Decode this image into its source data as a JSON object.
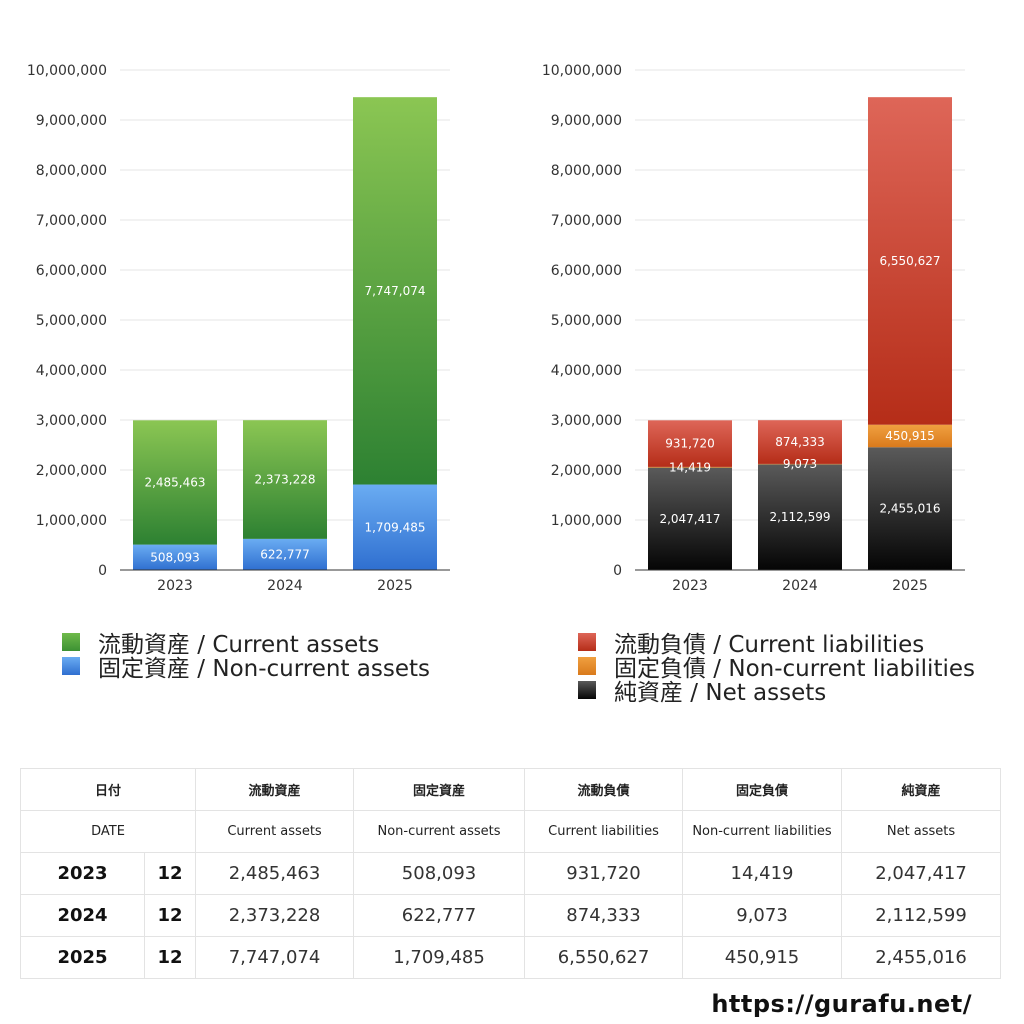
{
  "chart_data": [
    {
      "type": "bar",
      "stacked": true,
      "categories": [
        "2023",
        "2024",
        "2025"
      ],
      "ylim": [
        0,
        10000000
      ],
      "yticks": [
        0,
        1000000,
        2000000,
        3000000,
        4000000,
        5000000,
        6000000,
        7000000,
        8000000,
        9000000,
        10000000
      ],
      "ytick_labels": [
        "0",
        "1,000,000",
        "2,000,000",
        "3,000,000",
        "4,000,000",
        "5,000,000",
        "6,000,000",
        "7,000,000",
        "8,000,000",
        "9,000,000",
        "10,000,000"
      ],
      "grid": true,
      "series": [
        {
          "name": "固定資産 / Non-current assets",
          "values": [
            508093,
            622777,
            1709485
          ],
          "labels": [
            "508,093",
            "622,777",
            "1,709,485"
          ],
          "color_top": "#6aacf2",
          "color_bottom": "#2f6fd0"
        },
        {
          "name": "流動資産 / Current assets",
          "values": [
            2485463,
            2373228,
            7747074
          ],
          "labels": [
            "2,485,463",
            "2,373,228",
            "7,747,074"
          ],
          "color_top": "#8bc653",
          "color_bottom": "#2d8132"
        }
      ]
    },
    {
      "type": "bar",
      "stacked": true,
      "categories": [
        "2023",
        "2024",
        "2025"
      ],
      "ylim": [
        0,
        10000000
      ],
      "yticks": [
        0,
        1000000,
        2000000,
        3000000,
        4000000,
        5000000,
        6000000,
        7000000,
        8000000,
        9000000,
        10000000
      ],
      "ytick_labels": [
        "0",
        "1,000,000",
        "2,000,000",
        "3,000,000",
        "4,000,000",
        "5,000,000",
        "6,000,000",
        "7,000,000",
        "8,000,000",
        "9,000,000",
        "10,000,000"
      ],
      "grid": true,
      "series": [
        {
          "name": "純資産 / Net assets",
          "values": [
            2047417,
            2112599,
            2455016
          ],
          "labels": [
            "2,047,417",
            "2,112,599",
            "2,455,016"
          ],
          "color_top": "#5a5a5a",
          "color_bottom": "#050505"
        },
        {
          "name": "固定負債 / Non-current liabilities",
          "values": [
            14419,
            9073,
            450915
          ],
          "labels": [
            "14,419",
            "9,073",
            "450,915"
          ],
          "color_top": "#f0a040",
          "color_bottom": "#d97a1c"
        },
        {
          "name": "流動負債 / Current liabilities",
          "values": [
            931720,
            874333,
            6550627
          ],
          "labels": [
            "931,720",
            "874,333",
            "6,550,627"
          ],
          "color_top": "#de6658",
          "color_bottom": "#b52d18"
        }
      ]
    }
  ],
  "legend_assets": [
    {
      "label": "流動資産 / Current assets",
      "color_top": "#6fba4a",
      "color_bottom": "#3c9133"
    },
    {
      "label": "固定資産 / Non-current assets",
      "color_top": "#6aacf2",
      "color_bottom": "#2f6fd0"
    }
  ],
  "legend_liabilities": [
    {
      "label": "流動負債 / Current liabilities",
      "color_top": "#de6658",
      "color_bottom": "#b52d18"
    },
    {
      "label": "固定負債 / Non-current liabilities",
      "color_top": "#f0a040",
      "color_bottom": "#d97a1c"
    },
    {
      "label": "純資産 / Net assets",
      "color_top": "#5a5a5a",
      "color_bottom": "#050505"
    }
  ],
  "table": {
    "header_jp": {
      "date": "日付",
      "current_assets": "流動資産",
      "noncurrent_assets": "固定資産",
      "current_liabilities": "流動負債",
      "noncurrent_liabilities": "固定負債",
      "net_assets": "純資産"
    },
    "header_en": {
      "date": "DATE",
      "current_assets": "Current assets",
      "noncurrent_assets": "Non-current assets",
      "current_liabilities": "Current liabilities",
      "noncurrent_liabilities": "Non-current liabilities",
      "net_assets": "Net assets"
    },
    "rows": [
      {
        "year": "2023",
        "month": "12",
        "current_assets": "2,485,463",
        "noncurrent_assets": "508,093",
        "current_liabilities": "931,720",
        "noncurrent_liabilities": "14,419",
        "net_assets": "2,047,417"
      },
      {
        "year": "2024",
        "month": "12",
        "current_assets": "2,373,228",
        "noncurrent_assets": "622,777",
        "current_liabilities": "874,333",
        "noncurrent_liabilities": "9,073",
        "net_assets": "2,112,599"
      },
      {
        "year": "2025",
        "month": "12",
        "current_assets": "7,747,074",
        "noncurrent_assets": "1,709,485",
        "current_liabilities": "6,550,627",
        "noncurrent_liabilities": "450,915",
        "net_assets": "2,455,016"
      }
    ]
  },
  "site_url": "https://gurafu.net/"
}
